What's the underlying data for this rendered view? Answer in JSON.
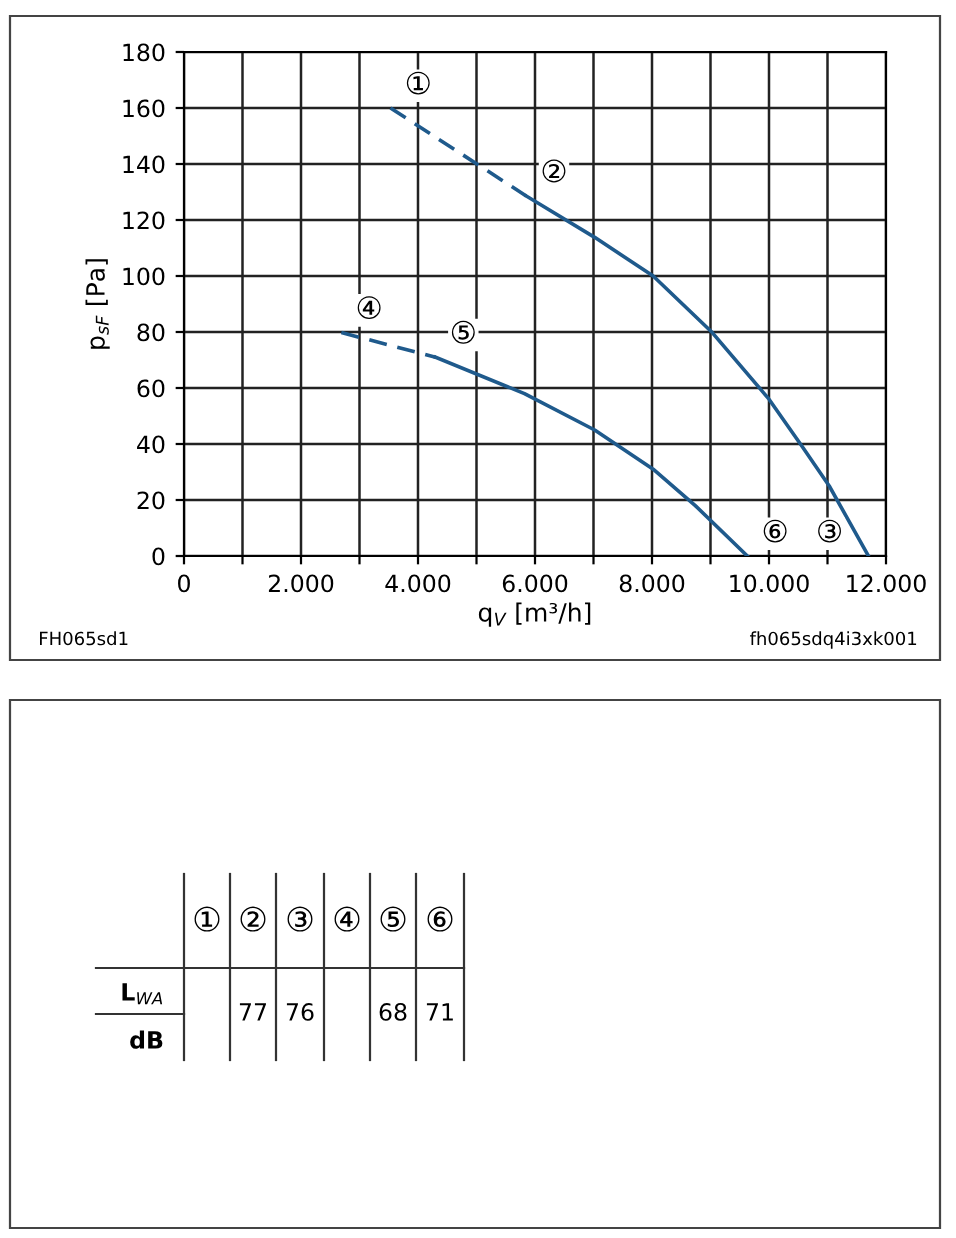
{
  "chart_data": [
    {
      "type": "line",
      "xlabel": "q$_{V}$ [m³/h]",
      "ylabel": "p$_{sF}$ [Pa]",
      "xlim": [
        0,
        12000
      ],
      "ylim": [
        0,
        180
      ],
      "xticks": [
        0,
        {
          "value": 1000,
          "label": null
        },
        {
          "value": 2000,
          "label": "2.000"
        },
        {
          "value": 3000,
          "label": null
        },
        {
          "value": 4000,
          "label": "4.000"
        },
        {
          "value": 5000,
          "label": null
        },
        {
          "value": 6000,
          "label": "6.000"
        },
        {
          "value": 7000,
          "label": null
        },
        {
          "value": 8000,
          "label": "8.000"
        },
        {
          "value": 9000,
          "label": null
        },
        {
          "value": 10000,
          "label": "10.000"
        },
        {
          "value": 11000,
          "label": null
        },
        {
          "value": 12000,
          "label": "12.000"
        }
      ],
      "yticks": [
        0,
        20,
        40,
        60,
        80,
        100,
        120,
        140,
        160,
        180
      ],
      "grid": true,
      "legend": false,
      "marker": "none",
      "series": [
        {
          "color": "#1f5a8c",
          "line_style": "dashed",
          "x": [
            3530,
            5850
          ],
          "values": [
            160,
            128.6
          ]
        },
        {
          "color": "#1f5a8c",
          "line_style": "solid",
          "x": [
            5850,
            7020,
            8020,
            9030,
            10000,
            10570,
            11030,
            11700
          ],
          "values": [
            128.6,
            113.8,
            100,
            79.8,
            56,
            39,
            25,
            0
          ]
        },
        {
          "color": "#1f5a8c",
          "line_style": "dashed",
          "x": [
            2690,
            4300
          ],
          "values": [
            79.8,
            71
          ]
        },
        {
          "color": "#1f5a8c",
          "line_style": "solid",
          "x": [
            4300,
            5820,
            7020,
            8020,
            8740,
            9630
          ],
          "values": [
            71,
            58,
            45,
            31,
            18,
            0
          ]
        }
      ],
      "annotations": [
        {
          "text": "①",
          "x": 3530,
          "y": 160
        },
        {
          "text": "②",
          "x": 5850,
          "y": 128.6
        },
        {
          "text": "③",
          "x": 11700,
          "y": 0
        },
        {
          "text": "④",
          "x": 2690,
          "y": 79.8
        },
        {
          "text": "⑤",
          "x": 4300,
          "y": 71
        },
        {
          "text": "⑥",
          "x": 9630,
          "y": 0
        },
        "FH065sd1",
        "fh065sdq4i3xk001"
      ]
    },
    {
      "type": "other",
      "categories": [
        "①",
        "②",
        "③",
        "④",
        "⑤",
        "⑥"
      ],
      "values": [
        null,
        77,
        76,
        null,
        68,
        71
      ],
      "data_labels": true,
      "annotations": [
        "L$_{WA}$",
        "dB"
      ]
    }
  ]
}
